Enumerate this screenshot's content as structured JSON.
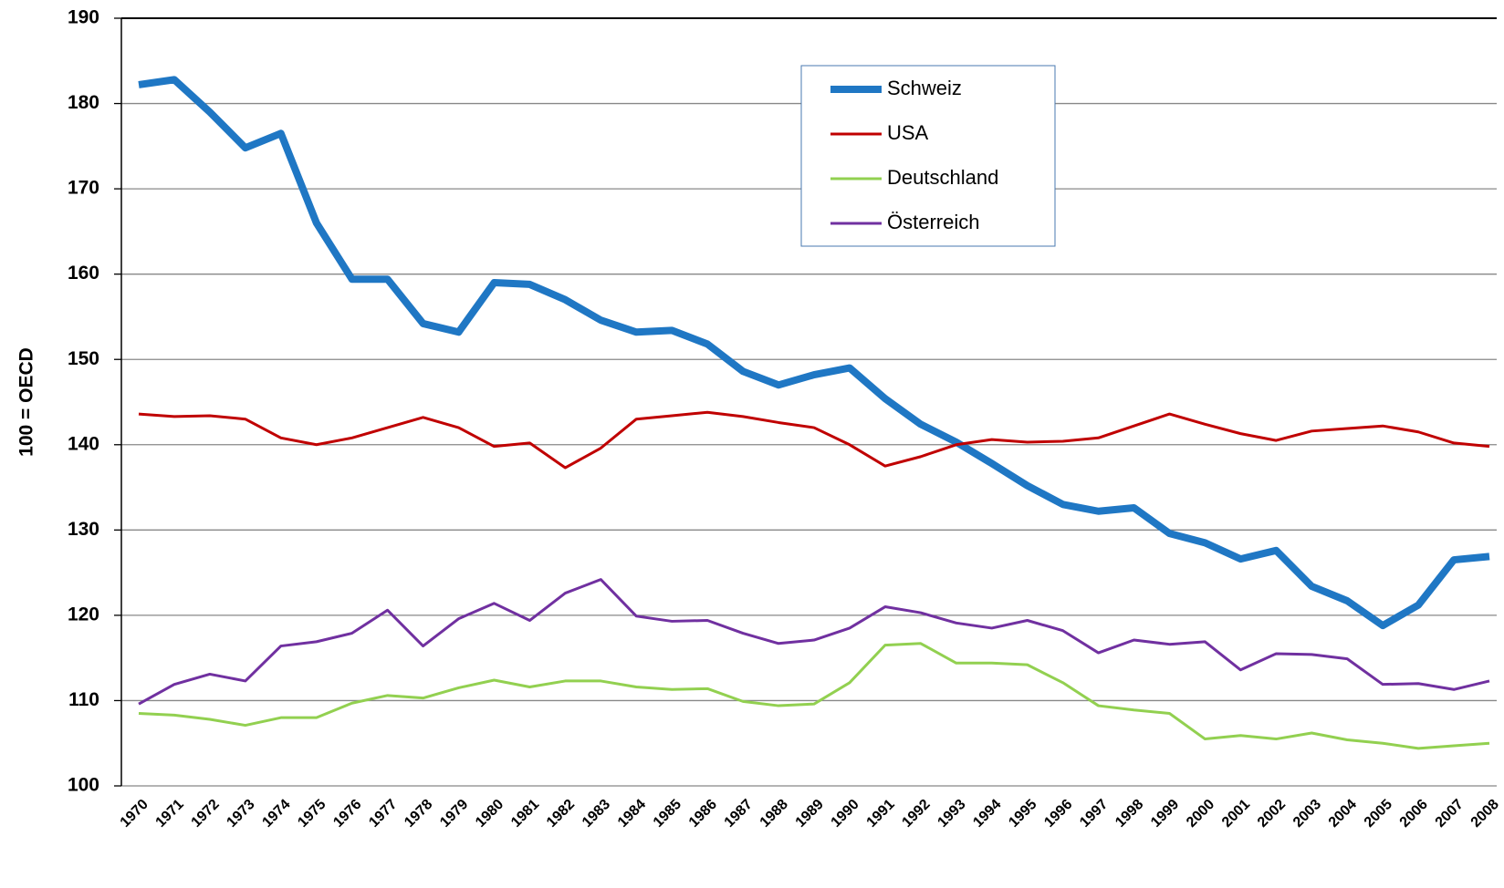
{
  "chart_data": {
    "type": "line",
    "y_label": "100 = OECD",
    "categories": [
      "1970",
      "1971",
      "1972",
      "1973",
      "1974",
      "1975",
      "1976",
      "1977",
      "1978",
      "1979",
      "1980",
      "1981",
      "1982",
      "1983",
      "1984",
      "1985",
      "1986",
      "1987",
      "1988",
      "1989",
      "1990",
      "1991",
      "1992",
      "1993",
      "1994",
      "1995",
      "1996",
      "1997",
      "1998",
      "1999",
      "2000",
      "2001",
      "2002",
      "2003",
      "2004",
      "2005",
      "2006",
      "2007",
      "2008"
    ],
    "series": [
      {
        "name": "Schweiz",
        "color": "#1f77c4",
        "values": [
          182.2,
          182.8,
          179,
          174.8,
          176.5,
          166,
          159.4,
          159.4,
          154.2,
          153.2,
          159,
          158.8,
          157,
          154.6,
          153.2,
          153.4,
          151.8,
          148.6,
          147,
          148.2,
          149,
          145.4,
          142.4,
          140.3,
          137.8,
          135.2,
          133,
          132.2,
          132.6,
          129.6,
          128.5,
          126.6,
          127.6,
          123.4,
          121.7,
          118.8,
          121.2,
          126.5,
          126.9
        ]
      },
      {
        "name": "USA",
        "color": "#c00000",
        "values": [
          143.6,
          143.3,
          143.4,
          143,
          140.8,
          140,
          140.8,
          142,
          143.2,
          142,
          139.8,
          140.2,
          137.3,
          139.6,
          143,
          143.4,
          143.8,
          143.3,
          142.6,
          142,
          140,
          137.5,
          138.6,
          140,
          140.6,
          140.3,
          140.4,
          140.8,
          142.2,
          143.6,
          142.4,
          141.3,
          140.5,
          141.6,
          141.9,
          142.2,
          141.5,
          140.2,
          139.8
        ]
      },
      {
        "name": "Deutschland",
        "color": "#92d050",
        "values": [
          108.5,
          108.3,
          107.8,
          107.1,
          108,
          108,
          109.7,
          110.6,
          110.3,
          111.5,
          112.4,
          111.6,
          112.3,
          112.3,
          111.6,
          111.3,
          111.4,
          109.9,
          109.4,
          109.6,
          112.1,
          116.5,
          116.7,
          114.4,
          114.4,
          114.2,
          112.1,
          109.4,
          108.9,
          108.5,
          105.5,
          105.9,
          105.5,
          106.2,
          105.4,
          105,
          104.4,
          104.7,
          105
        ]
      },
      {
        "name": "Österreich",
        "color": "#7030a0",
        "values": [
          109.6,
          111.9,
          113.1,
          112.3,
          116.4,
          116.9,
          117.9,
          120.6,
          116.4,
          119.6,
          121.4,
          119.4,
          122.6,
          124.2,
          119.9,
          119.3,
          119.4,
          117.9,
          116.7,
          117.1,
          118.5,
          121,
          120.3,
          119.1,
          118.5,
          119.4,
          118.2,
          115.6,
          117.1,
          116.6,
          116.9,
          113.6,
          115.5,
          115.4,
          114.9,
          111.9,
          112,
          111.3,
          112.3
        ]
      }
    ],
    "ylim": [
      100,
      190
    ],
    "yticks": [
      100,
      110,
      120,
      130,
      140,
      150,
      160,
      170,
      180,
      190
    ],
    "grid": true,
    "legend": "top-center"
  }
}
